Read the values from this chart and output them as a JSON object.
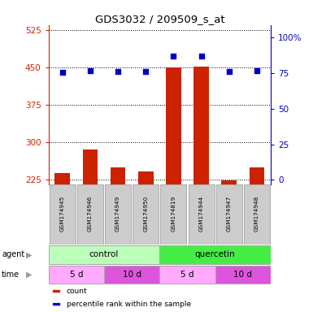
{
  "title": "GDS3032 / 209509_s_at",
  "samples": [
    "GSM174945",
    "GSM174946",
    "GSM174949",
    "GSM174950",
    "GSM174819",
    "GSM174944",
    "GSM174947",
    "GSM174948"
  ],
  "counts": [
    237,
    285,
    248,
    240,
    449,
    452,
    222,
    248
  ],
  "percentile_ranks": [
    75.5,
    77.0,
    76.5,
    76.0,
    87.0,
    87.0,
    76.0,
    77.0
  ],
  "ylim_left": [
    215,
    535
  ],
  "yticks_left": [
    225,
    300,
    375,
    450,
    525
  ],
  "ylim_right": [
    -3,
    109
  ],
  "yticks_right": [
    0,
    25,
    50,
    75,
    100
  ],
  "yticklabels_right": [
    "0",
    "25",
    "50",
    "75",
    "100%"
  ],
  "bar_color": "#cc2200",
  "dot_color": "#0000cc",
  "agent_groups": [
    {
      "label": "control",
      "start": 0,
      "end": 4,
      "color": "#bbffbb"
    },
    {
      "label": "quercetin",
      "start": 4,
      "end": 8,
      "color": "#44ee44"
    }
  ],
  "time_groups": [
    {
      "label": "5 d",
      "start": 0,
      "end": 2,
      "color": "#ffaaff"
    },
    {
      "label": "10 d",
      "start": 2,
      "end": 4,
      "color": "#dd55dd"
    },
    {
      "label": "5 d",
      "start": 4,
      "end": 6,
      "color": "#ffaaff"
    },
    {
      "label": "10 d",
      "start": 6,
      "end": 8,
      "color": "#dd55dd"
    }
  ],
  "legend_items": [
    {
      "label": "count",
      "color": "#cc2200"
    },
    {
      "label": "percentile rank within the sample",
      "color": "#0000cc"
    }
  ],
  "left_tick_color": "#cc2200",
  "right_tick_color": "#0000cc",
  "grid_color": "#000000",
  "sample_box_color": "#cccccc",
  "arrow_color": "#999999",
  "bar_width": 0.55
}
